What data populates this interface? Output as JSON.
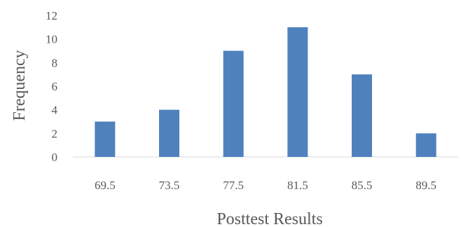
{
  "chart_data": {
    "type": "bar",
    "categories": [
      "69.5",
      "73.5",
      "77.5",
      "81.5",
      "85.5",
      "89.5"
    ],
    "values": [
      3,
      4,
      9,
      11,
      7,
      2
    ],
    "title": "",
    "xlabel": "Posttest Results",
    "ylabel": "Frequency",
    "ylim": [
      0,
      12
    ],
    "yticks": [
      0,
      2,
      4,
      6,
      8,
      10,
      12
    ],
    "grid": false,
    "legend": "none",
    "bar_color": "#4f81bd",
    "axis_color": "#d9d9d9",
    "text_color": "#595959"
  }
}
